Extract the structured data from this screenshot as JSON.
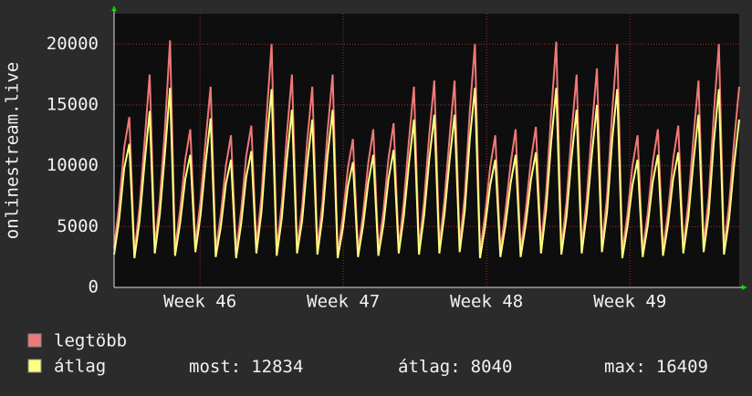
{
  "chart_data": {
    "type": "line",
    "y_axis_label": "onlinestream.live",
    "xlim": [
      0,
      123
    ],
    "xticks": [
      {
        "value": 16.9,
        "label": "Week 46"
      },
      {
        "value": 45.1,
        "label": "Week 47"
      },
      {
        "value": 73.3,
        "label": "Week 48"
      },
      {
        "value": 101.5,
        "label": "Week 49"
      }
    ],
    "ylim": [
      0,
      22500
    ],
    "yticks": [
      0,
      5000,
      10000,
      15000,
      20000
    ],
    "grid": true,
    "series": [
      {
        "name": "legtöbb",
        "color": "#f07878",
        "values": [
          3200,
          6800,
          11500,
          14000,
          2800,
          6500,
          12000,
          17500,
          3300,
          7200,
          13000,
          20300,
          3100,
          6400,
          10500,
          13000,
          3500,
          7100,
          12000,
          16500,
          3000,
          6000,
          10000,
          12500,
          2900,
          6300,
          10800,
          13300,
          3400,
          7500,
          14000,
          20000,
          3100,
          6900,
          12500,
          17500,
          3300,
          6600,
          12000,
          16500,
          3200,
          7000,
          12800,
          17500,
          2800,
          5800,
          9800,
          12200,
          3000,
          6100,
          10200,
          13000,
          3100,
          6300,
          10600,
          13500,
          3300,
          7000,
          12000,
          16500,
          3200,
          7100,
          12500,
          17000,
          3400,
          7200,
          12300,
          17000,
          3500,
          7600,
          14500,
          20000,
          2900,
          6000,
          9900,
          12500,
          3000,
          6200,
          10100,
          13000,
          3000,
          6300,
          10400,
          13200,
          3400,
          7700,
          14200,
          20200,
          3200,
          7000,
          12600,
          17500,
          3300,
          7300,
          13000,
          18000,
          3500,
          7500,
          14400,
          20000,
          2900,
          6000,
          10000,
          12500,
          3000,
          6100,
          10300,
          13000,
          3100,
          6200,
          10500,
          13300,
          3300,
          7000,
          12400,
          17000,
          3500,
          7400,
          14300,
          20000,
          3200,
          6800,
          12000,
          16500
        ]
      },
      {
        "name": "átlag",
        "color": "#ffff80",
        "values": [
          2700,
          5600,
          9800,
          11800,
          2400,
          5400,
          10200,
          14500,
          2800,
          6000,
          11000,
          16400,
          2600,
          5300,
          8900,
          10900,
          2900,
          5900,
          10200,
          13900,
          2500,
          5000,
          8500,
          10500,
          2400,
          5200,
          9100,
          11200,
          2800,
          6200,
          11800,
          16300,
          2600,
          5700,
          10500,
          14600,
          2800,
          5500,
          10100,
          13800,
          2700,
          5800,
          10800,
          14600,
          2400,
          4800,
          8300,
          10300,
          2500,
          5100,
          8600,
          10900,
          2600,
          5200,
          8900,
          11300,
          2800,
          5800,
          10100,
          13800,
          2700,
          5900,
          10500,
          14200,
          2800,
          6000,
          10400,
          14200,
          2900,
          6300,
          12200,
          16400,
          2400,
          5000,
          8400,
          10500,
          2500,
          5100,
          8500,
          10900,
          2500,
          5200,
          8800,
          11100,
          2800,
          6400,
          11900,
          16400,
          2700,
          5800,
          10600,
          14600,
          2800,
          6100,
          10900,
          15000,
          2900,
          6200,
          12100,
          16300,
          2400,
          5000,
          8400,
          10500,
          2500,
          5100,
          8700,
          10900,
          2600,
          5200,
          8900,
          11100,
          2800,
          5800,
          10400,
          14200,
          2900,
          6100,
          12000,
          16300,
          2700,
          5600,
          10100,
          13800
        ]
      }
    ],
    "legend_stats": [
      {
        "label": "most:",
        "value": 12834
      },
      {
        "label": "átlag:",
        "value": 8040
      },
      {
        "label": "max:",
        "value": 16409
      }
    ]
  }
}
